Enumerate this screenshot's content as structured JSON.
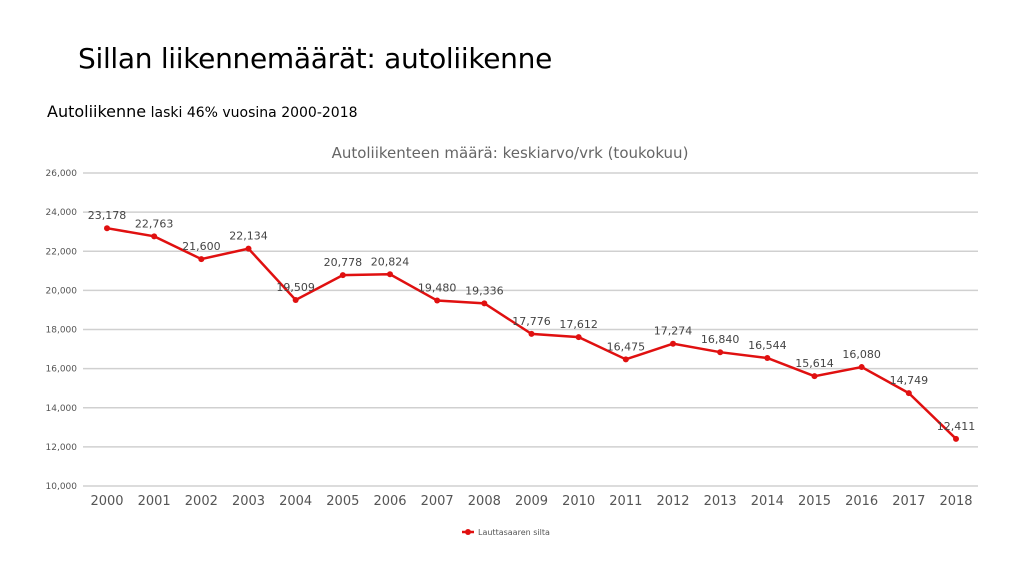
{
  "slide": {
    "title": "Sillan liikennemäärät: autoliikenne",
    "subtitle_lead": "Autoliikenne",
    "subtitle_rest": " laski 46% vuosina 2000-2018"
  },
  "chart_data": {
    "type": "line",
    "title": "Autoliikenteen määrä: keskiarvo/vrk (toukokuu)",
    "xlabel": "",
    "ylabel": "",
    "categories": [
      "2000",
      "2001",
      "2002",
      "2003",
      "2004",
      "2005",
      "2006",
      "2007",
      "2008",
      "2009",
      "2010",
      "2011",
      "2012",
      "2013",
      "2014",
      "2015",
      "2016",
      "2017",
      "2018"
    ],
    "series": [
      {
        "name": "Lauttasaaren silta",
        "color": "#e01010",
        "values": [
          23178,
          22763,
          21600,
          22134,
          19509,
          20778,
          20824,
          19480,
          19336,
          17776,
          17612,
          16475,
          17274,
          16840,
          16544,
          15614,
          16080,
          14749,
          12411
        ]
      }
    ],
    "data_labels": [
      "23,178",
      "22,763",
      "21,600",
      "22,134",
      "19,509",
      "20,778",
      "20,824",
      "19,480",
      "19,336",
      "17,776",
      "17,612",
      "16,475",
      "17,274",
      "16,840",
      "16,544",
      "15,614",
      "16,080",
      "14,749",
      "12,411"
    ],
    "ylim": [
      10000,
      26000
    ],
    "yticks": [
      10000,
      12000,
      14000,
      16000,
      18000,
      20000,
      22000,
      24000,
      26000
    ],
    "ytick_labels": [
      "10,000",
      "12,000",
      "14,000",
      "16,000",
      "18,000",
      "20,000",
      "22,000",
      "24,000",
      "26,000"
    ],
    "grid": true,
    "legend": "bottom"
  }
}
